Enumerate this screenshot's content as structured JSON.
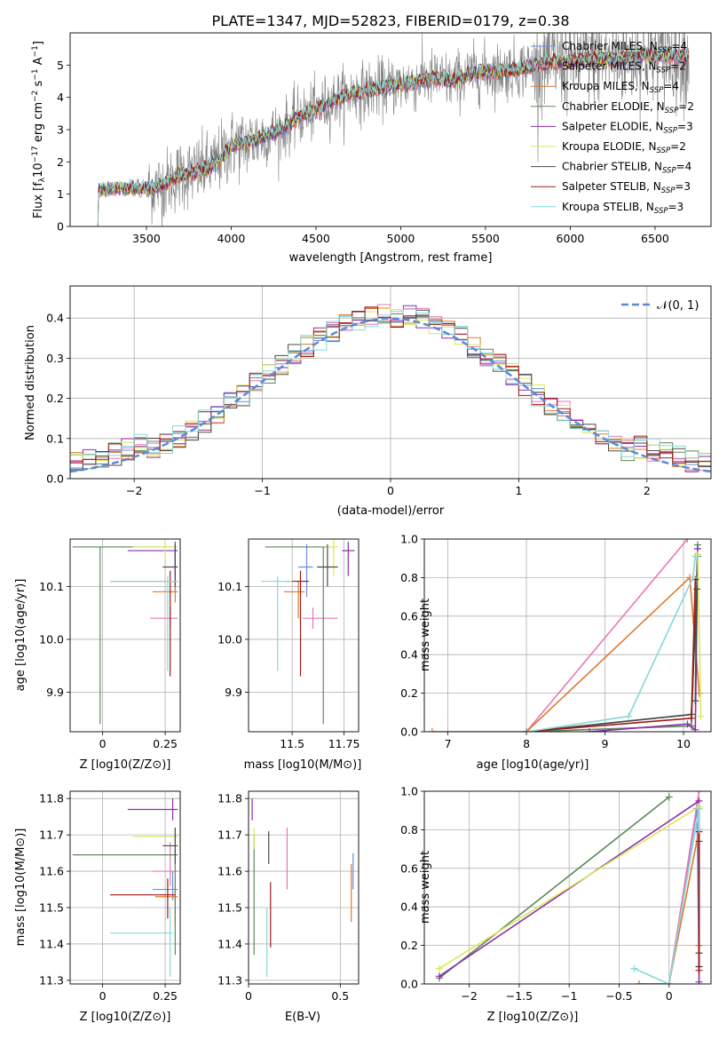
{
  "figure": {
    "title": "PLATE=1347, MJD=52823, FIBERID=0179, z=0.38"
  },
  "colors": {
    "Chabrier MILES": "#6a8fd8",
    "Salpeter MILES": "#e877b8",
    "Kroupa MILES": "#e0782c",
    "Chabrier ELODIE": "#5b8a5b",
    "Salpeter ELODIE": "#8e2ea8",
    "Kroupa ELODIE": "#d8e85a",
    "Chabrier STELIB": "#4a4a4a",
    "Salpeter STELIB": "#a01818",
    "Kroupa STELIB": "#88d8d8",
    "data": "#808080",
    "gauss": "#5b8ad8"
  },
  "chart_data": [
    {
      "id": "spectrum",
      "type": "line",
      "title": "PLATE=1347, MJD=52823, FIBERID=0179, z=0.38",
      "xlabel": "wavelength [Angstrom, rest frame]",
      "ylabel": "Flux [f_λ 10^-17 erg cm^-2 s^-1 A^-1]",
      "xlim": [
        3050,
        6830
      ],
      "ylim": [
        0,
        6
      ],
      "xticks": [
        3500,
        4000,
        4500,
        5000,
        5500,
        6000,
        6500
      ],
      "yticks": [
        0,
        1,
        2,
        3,
        4,
        5
      ],
      "legend_position": "top-right",
      "legend": [
        "Chabrier MILES, N_SSP=4",
        "Salpeter MILES, N_SSP=2",
        "Kroupa MILES, N_SSP=4",
        "Chabrier ELODIE, N_SSP=2",
        "Salpeter ELODIE, N_SSP=3",
        "Kroupa ELODIE, N_SSP=2",
        "Chabrier STELIB, N_SSP=4",
        "Salpeter STELIB, N_SSP=3",
        "Kroupa STELIB, N_SSP=3"
      ],
      "model_continuum": {
        "x": [
          3210,
          3250,
          3400,
          3500,
          3600,
          3700,
          3800,
          3900,
          4000,
          4100,
          4200,
          4300,
          4400,
          4500,
          4600,
          4700,
          4800,
          4900,
          5000,
          5100,
          5200,
          5300,
          5400,
          5500,
          5600,
          5700,
          5800,
          5900,
          6000,
          6100,
          6200,
          6300,
          6400,
          6500,
          6600,
          6700
        ],
        "y": [
          1.1,
          1.15,
          1.2,
          1.15,
          1.3,
          1.6,
          1.7,
          1.9,
          2.5,
          2.6,
          2.8,
          3.0,
          3.4,
          3.6,
          3.9,
          4.1,
          4.2,
          4.3,
          4.4,
          4.5,
          4.6,
          4.5,
          4.7,
          4.8,
          4.8,
          4.9,
          5.0,
          5.1,
          5.1,
          5.2,
          5.2,
          5.2,
          5.3,
          5.3,
          5.3,
          5.2
        ]
      },
      "data_range": [
        3510,
        6700
      ]
    },
    {
      "id": "residuals",
      "type": "line",
      "xlabel": "(data-model)/error",
      "ylabel": "Normed distribution",
      "xlim": [
        -2.5,
        2.5
      ],
      "ylim": [
        0,
        0.48
      ],
      "xticks": [
        -2,
        -1,
        0,
        1,
        2
      ],
      "yticks": [
        0.0,
        0.1,
        0.2,
        0.3,
        0.4
      ],
      "grid": true,
      "legend_position": "top-right",
      "legend": [
        "𝒩(0, 1)"
      ],
      "hist_bins": [
        -2.5,
        2.5,
        50
      ]
    },
    {
      "id": "age_vs_Z",
      "type": "scatter",
      "xlabel": "Z [log10(Z/Z⊙)]",
      "ylabel": "age  [log10(age/yr)]",
      "xlim": [
        -0.13,
        0.31
      ],
      "ylim": [
        9.825,
        10.19
      ],
      "xticks": [
        0.0,
        0.25
      ],
      "yticks": [
        9.9,
        10.0,
        10.1
      ],
      "grid": true,
      "points": [
        {
          "model": "Chabrier MILES",
          "x": 0.29,
          "y": 10.137,
          "xlo": 0.29,
          "xhi": 0.29,
          "ylo": 10.09,
          "yhi": 10.18
        },
        {
          "model": "Salpeter MILES",
          "x": 0.27,
          "y": 10.04,
          "xlo": 0.19,
          "xhi": 0.3,
          "ylo": 10.02,
          "yhi": 10.06
        },
        {
          "model": "Kroupa MILES",
          "x": 0.29,
          "y": 10.09,
          "xlo": 0.2,
          "xhi": 0.3,
          "ylo": 10.07,
          "yhi": 10.11
        },
        {
          "model": "Chabrier ELODIE",
          "x": -0.01,
          "y": 10.175,
          "xlo": -0.12,
          "xhi": 0.28,
          "ylo": 9.84,
          "yhi": 10.175
        },
        {
          "model": "Salpeter ELODIE",
          "x": 0.29,
          "y": 10.168,
          "xlo": 0.1,
          "xhi": 0.3,
          "ylo": 10.12,
          "yhi": 10.185
        },
        {
          "model": "Kroupa ELODIE",
          "x": 0.25,
          "y": 10.175,
          "xlo": 0.12,
          "xhi": 0.3,
          "ylo": 10.15,
          "yhi": 10.19
        },
        {
          "model": "Chabrier STELIB",
          "x": 0.29,
          "y": 10.137,
          "xlo": 0.24,
          "xhi": 0.3,
          "ylo": 10.1,
          "yhi": 10.18
        },
        {
          "model": "Salpeter STELIB",
          "x": 0.27,
          "y": 10.11,
          "xlo": 0.03,
          "xhi": 0.3,
          "ylo": 9.93,
          "yhi": 10.13
        },
        {
          "model": "Kroupa STELIB",
          "x": 0.26,
          "y": 10.11,
          "xlo": 0.03,
          "xhi": 0.3,
          "ylo": 9.94,
          "yhi": 10.12
        }
      ]
    },
    {
      "id": "age_vs_mass",
      "type": "scatter",
      "xlabel": "mass [log10(M/M⊙)]",
      "ylabel": "",
      "xlim": [
        11.29,
        11.82
      ],
      "ylim": [
        9.825,
        10.19
      ],
      "xticks": [
        11.5,
        11.75
      ],
      "yticks": [
        9.9,
        10.0,
        10.1
      ],
      "grid": true,
      "points": [
        {
          "model": "Chabrier MILES",
          "x": 11.57,
          "y": 10.137,
          "xlo": 11.53,
          "xhi": 11.6,
          "ylo": 10.08,
          "yhi": 10.18
        },
        {
          "model": "Salpeter MILES",
          "x": 11.6,
          "y": 10.04,
          "xlo": 11.55,
          "xhi": 11.72,
          "ylo": 10.02,
          "yhi": 10.06
        },
        {
          "model": "Kroupa MILES",
          "x": 11.53,
          "y": 10.09,
          "xlo": 11.46,
          "xhi": 11.56,
          "ylo": 10.04,
          "yhi": 10.11
        },
        {
          "model": "Chabrier ELODIE",
          "x": 11.65,
          "y": 10.175,
          "xlo": 11.37,
          "xhi": 11.66,
          "ylo": 9.84,
          "yhi": 10.175
        },
        {
          "model": "Salpeter ELODIE",
          "x": 11.77,
          "y": 10.168,
          "xlo": 11.74,
          "xhi": 11.8,
          "ylo": 10.12,
          "yhi": 10.185
        },
        {
          "model": "Kroupa ELODIE",
          "x": 11.7,
          "y": 10.175,
          "xlo": 11.66,
          "xhi": 11.72,
          "ylo": 10.12,
          "yhi": 10.19
        },
        {
          "model": "Chabrier STELIB",
          "x": 11.67,
          "y": 10.137,
          "xlo": 11.62,
          "xhi": 11.72,
          "ylo": 10.1,
          "yhi": 10.18
        },
        {
          "model": "Salpeter STELIB",
          "x": 11.54,
          "y": 10.11,
          "xlo": 11.47,
          "xhi": 11.58,
          "ylo": 9.93,
          "yhi": 10.13
        },
        {
          "model": "Kroupa STELIB",
          "x": 11.43,
          "y": 10.11,
          "xlo": 11.35,
          "xhi": 11.5,
          "ylo": 9.94,
          "yhi": 10.12
        }
      ]
    },
    {
      "id": "weight_vs_age",
      "type": "line",
      "xlabel": "age  [log10(age/yr)]",
      "ylabel": "mass weight",
      "xlim": [
        6.7,
        10.35
      ],
      "ylim": [
        0.0,
        1.0
      ],
      "xticks": [
        7,
        8,
        9,
        10
      ],
      "yticks": [
        0.0,
        0.2,
        0.4,
        0.6,
        0.8,
        1.0
      ],
      "grid": true,
      "series": [
        {
          "model": "Chabrier MILES",
          "x": [
            8.0,
            10.1,
            10.18
          ],
          "y": [
            0.0,
            0.09,
            0.91
          ]
        },
        {
          "model": "Salpeter MILES",
          "x": [
            8.0,
            10.05
          ],
          "y": [
            0.0,
            1.0
          ]
        },
        {
          "model": "Kroupa MILES",
          "x": [
            6.8,
            8.0,
            10.08,
            10.2
          ],
          "y": [
            0.0,
            0.0,
            0.8,
            0.2
          ]
        },
        {
          "model": "Chabrier ELODIE",
          "x": [
            8.0,
            10.1,
            10.18
          ],
          "y": [
            0.0,
            0.03,
            0.97
          ]
        },
        {
          "model": "Salpeter ELODIE",
          "x": [
            8.8,
            10.05,
            10.15,
            10.18
          ],
          "y": [
            0.0,
            0.04,
            0.01,
            0.95
          ]
        },
        {
          "model": "Kroupa ELODIE",
          "x": [
            10.18,
            10.22
          ],
          "y": [
            0.92,
            0.08
          ]
        },
        {
          "model": "Chabrier STELIB",
          "x": [
            8.0,
            10.1,
            10.17,
            10.15
          ],
          "y": [
            0.0,
            0.09,
            0.74,
            0.16
          ]
        },
        {
          "model": "Salpeter STELIB",
          "x": [
            8.0,
            10.1,
            10.15
          ],
          "y": [
            0.0,
            0.07,
            0.79
          ]
        },
        {
          "model": "Kroupa STELIB",
          "x": [
            8.0,
            9.3,
            10.12,
            10.15
          ],
          "y": [
            0.0,
            0.08,
            0.8,
            0.91
          ]
        }
      ]
    },
    {
      "id": "mass_vs_Z",
      "type": "scatter",
      "xlabel": "Z [log10(Z/Z⊙)]",
      "ylabel": "mass [log10(M/M⊙)]",
      "xlim": [
        -0.13,
        0.31
      ],
      "ylim": [
        11.29,
        11.82
      ],
      "xticks": [
        0.0,
        0.25
      ],
      "yticks": [
        11.3,
        11.4,
        11.5,
        11.6,
        11.7,
        11.8
      ],
      "grid": true,
      "points": [
        {
          "model": "Chabrier MILES",
          "x": 0.28,
          "y": 11.55,
          "xlo": 0.2,
          "xhi": 0.3,
          "ylo": 11.52,
          "yhi": 11.6
        },
        {
          "model": "Salpeter MILES",
          "x": 0.27,
          "y": 11.6,
          "xlo": 0.2,
          "xhi": 0.3,
          "ylo": 11.56,
          "yhi": 11.68
        },
        {
          "model": "Kroupa MILES",
          "x": 0.29,
          "y": 11.53,
          "xlo": 0.21,
          "xhi": 0.3,
          "ylo": 11.45,
          "yhi": 11.56
        },
        {
          "model": "Chabrier ELODIE",
          "x": 0.29,
          "y": 11.645,
          "xlo": -0.12,
          "xhi": 0.3,
          "ylo": 11.37,
          "yhi": 11.7
        },
        {
          "model": "Salpeter ELODIE",
          "x": 0.28,
          "y": 11.77,
          "xlo": 0.1,
          "xhi": 0.3,
          "ylo": 11.74,
          "yhi": 11.8
        },
        {
          "model": "Kroupa ELODIE",
          "x": 0.29,
          "y": 11.695,
          "xlo": 0.12,
          "xhi": 0.3,
          "ylo": 11.66,
          "yhi": 11.72
        },
        {
          "model": "Chabrier STELIB",
          "x": 0.29,
          "y": 11.67,
          "xlo": 0.24,
          "xhi": 0.3,
          "ylo": 11.62,
          "yhi": 11.72
        },
        {
          "model": "Salpeter STELIB",
          "x": 0.26,
          "y": 11.535,
          "xlo": 0.03,
          "xhi": 0.29,
          "ylo": 11.47,
          "yhi": 11.58
        },
        {
          "model": "Kroupa STELIB",
          "x": 0.27,
          "y": 11.43,
          "xlo": 0.03,
          "xhi": 0.28,
          "ylo": 11.31,
          "yhi": 11.5
        }
      ]
    },
    {
      "id": "mass_vs_ebv",
      "type": "scatter",
      "xlabel": "E(B-V)",
      "ylabel": "",
      "xlim": [
        0.0,
        0.6
      ],
      "ylim": [
        11.29,
        11.82
      ],
      "xticks": [
        0.0,
        0.5
      ],
      "yticks": [
        11.3,
        11.4,
        11.5,
        11.6,
        11.7,
        11.8
      ],
      "grid": true,
      "points": [
        {
          "model": "Chabrier MILES",
          "x": 0.57,
          "y": 11.6,
          "ylo": 11.55,
          "yhi": 11.65
        },
        {
          "model": "Salpeter MILES",
          "x": 0.21,
          "y": 11.63,
          "ylo": 11.55,
          "yhi": 11.72
        },
        {
          "model": "Kroupa MILES",
          "x": 0.56,
          "y": 11.53,
          "ylo": 11.46,
          "yhi": 11.62
        },
        {
          "model": "Chabrier ELODIE",
          "x": 0.03,
          "y": 11.52,
          "ylo": 11.37,
          "yhi": 11.7
        },
        {
          "model": "Salpeter ELODIE",
          "x": 0.02,
          "y": 11.77,
          "ylo": 11.74,
          "yhi": 11.8
        },
        {
          "model": "Kroupa ELODIE",
          "x": 0.03,
          "y": 11.69,
          "ylo": 11.66,
          "yhi": 11.72
        },
        {
          "model": "Chabrier STELIB",
          "x": 0.11,
          "y": 11.67,
          "ylo": 11.62,
          "yhi": 11.71
        },
        {
          "model": "Salpeter STELIB",
          "x": 0.12,
          "y": 11.48,
          "ylo": 11.39,
          "yhi": 11.57
        },
        {
          "model": "Kroupa STELIB",
          "x": 0.1,
          "y": 11.4,
          "ylo": 11.31,
          "yhi": 11.5
        }
      ]
    },
    {
      "id": "weight_vs_Z",
      "type": "line",
      "xlabel": "Z [log10(Z/Z⊙)]",
      "ylabel": "mass weight",
      "xlim": [
        -2.45,
        0.42
      ],
      "ylim": [
        0.0,
        1.0
      ],
      "xticks": [
        -2.0,
        -1.5,
        -1.0,
        -0.5,
        0.0
      ],
      "yticks": [
        0.0,
        0.2,
        0.4,
        0.6,
        0.8,
        1.0
      ],
      "grid": true,
      "series": [
        {
          "model": "Chabrier MILES",
          "x": [
            0.0,
            0.28,
            0.3
          ],
          "y": [
            0.0,
            0.91,
            0.09
          ]
        },
        {
          "model": "Salpeter MILES",
          "x": [
            -0.3,
            0.0,
            0.3
          ],
          "y": [
            0.0,
            0.0,
            1.0
          ]
        },
        {
          "model": "Kroupa MILES",
          "x": [
            -0.3,
            0.0,
            0.3,
            0.3
          ],
          "y": [
            0.0,
            0.0,
            0.8,
            0.2
          ]
        },
        {
          "model": "Chabrier ELODIE",
          "x": [
            -2.3,
            0.0
          ],
          "y": [
            0.03,
            0.97
          ]
        },
        {
          "model": "Salpeter ELODIE",
          "x": [
            -2.3,
            0.3,
            0.3
          ],
          "y": [
            0.04,
            0.95,
            0.01
          ]
        },
        {
          "model": "Kroupa ELODIE",
          "x": [
            -2.3,
            0.3
          ],
          "y": [
            0.08,
            0.92
          ]
        },
        {
          "model": "Chabrier STELIB",
          "x": [
            0.3,
            0.3,
            0.3
          ],
          "y": [
            0.74,
            0.16,
            0.09
          ]
        },
        {
          "model": "Salpeter STELIB",
          "x": [
            0.3,
            0.3
          ],
          "y": [
            0.79,
            0.07
          ]
        },
        {
          "model": "Kroupa STELIB",
          "x": [
            -0.35,
            0.0,
            0.3,
            0.3
          ],
          "y": [
            0.08,
            0.0,
            0.91,
            0.8
          ]
        }
      ]
    }
  ]
}
